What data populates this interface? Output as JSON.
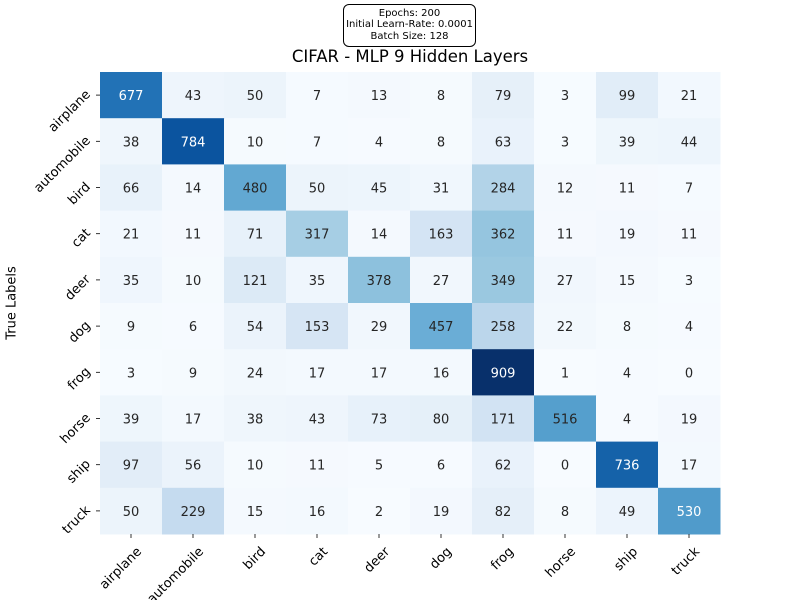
{
  "info_box": {
    "epochs": "Epochs: 200",
    "learn_rate": "Initial Learn-Rate: 0.0001",
    "batch_size": "Batch Size: 128"
  },
  "chart_data": {
    "type": "heatmap",
    "title": "CIFAR - MLP 9 Hidden Layers",
    "ylabel": "True Labels",
    "xlabel": "",
    "colormap": "Blues",
    "value_range": [
      0,
      909
    ],
    "x_categories": [
      "airplane",
      "automobile",
      "bird",
      "cat",
      "deer",
      "dog",
      "frog",
      "horse",
      "ship",
      "truck"
    ],
    "y_categories": [
      "airplane",
      "automobile",
      "bird",
      "cat",
      "deer",
      "dog",
      "frog",
      "horse",
      "ship",
      "truck"
    ],
    "values": [
      [
        677,
        43,
        50,
        7,
        13,
        8,
        79,
        3,
        99,
        21
      ],
      [
        38,
        784,
        10,
        7,
        4,
        8,
        63,
        3,
        39,
        44
      ],
      [
        66,
        14,
        480,
        50,
        45,
        31,
        284,
        12,
        11,
        7
      ],
      [
        21,
        11,
        71,
        317,
        14,
        163,
        362,
        11,
        19,
        11
      ],
      [
        35,
        10,
        121,
        35,
        378,
        27,
        349,
        27,
        15,
        3
      ],
      [
        9,
        6,
        54,
        153,
        29,
        457,
        258,
        22,
        8,
        4
      ],
      [
        3,
        9,
        24,
        17,
        17,
        16,
        909,
        1,
        4,
        0
      ],
      [
        39,
        17,
        38,
        43,
        73,
        80,
        171,
        516,
        4,
        19
      ],
      [
        97,
        56,
        10,
        11,
        5,
        6,
        62,
        0,
        736,
        17
      ],
      [
        50,
        229,
        15,
        16,
        2,
        19,
        82,
        8,
        49,
        530
      ]
    ],
    "colorbar": false,
    "grid": false
  }
}
